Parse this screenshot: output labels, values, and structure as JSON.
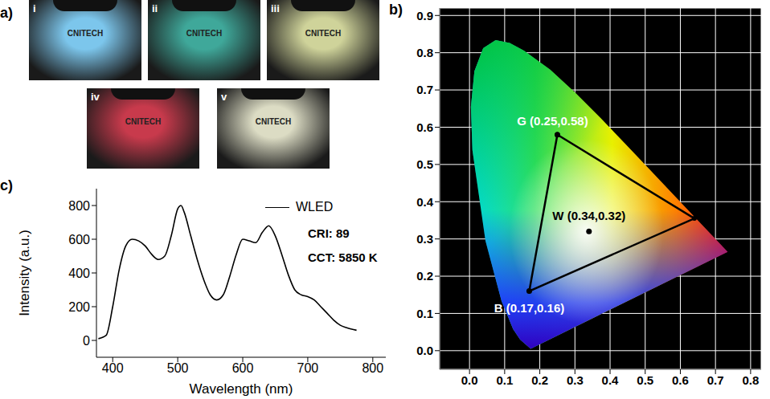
{
  "photos": {
    "label": "a)",
    "items": [
      {
        "label": "i",
        "text": "CNITECH",
        "color": "#7cc6ec"
      },
      {
        "label": "ii",
        "text": "CNITECH",
        "color": "#3fa89a"
      },
      {
        "label": "iii",
        "text": "CNITECH",
        "color": "#cfd39a"
      },
      {
        "label": "iv",
        "text": "CNITECH",
        "color": "#c83a4c"
      },
      {
        "label": "v",
        "text": "CNITECH",
        "color": "#dcdcc4"
      }
    ]
  },
  "chart_data": [
    {
      "label": "c)",
      "type": "line",
      "x": [
        378,
        390,
        400,
        410,
        420,
        430,
        440,
        450,
        460,
        470,
        480,
        490,
        500,
        505,
        510,
        520,
        530,
        540,
        550,
        560,
        570,
        580,
        590,
        600,
        610,
        620,
        630,
        640,
        650,
        660,
        670,
        680,
        690,
        700,
        710,
        720,
        730,
        740,
        750,
        760,
        775
      ],
      "series": [
        {
          "name": "WLED",
          "color": "#000000",
          "values": [
            10,
            30,
            200,
            420,
            560,
            600,
            590,
            560,
            510,
            480,
            500,
            620,
            780,
            800,
            760,
            620,
            480,
            360,
            270,
            240,
            270,
            380,
            510,
            600,
            590,
            580,
            640,
            680,
            620,
            510,
            390,
            300,
            270,
            260,
            240,
            200,
            160,
            120,
            90,
            75,
            60
          ]
        }
      ],
      "xlim": [
        375,
        820
      ],
      "ylim": [
        -100,
        900
      ],
      "xticks": [
        400,
        500,
        600,
        700,
        800
      ],
      "yticks": [
        0,
        200,
        400,
        600,
        800
      ],
      "x_label": "Wavelength (nm)",
      "y_label": "Intensity (a.u.)",
      "annotations": [
        "CRI: 89",
        "CCT: 5850 K"
      ],
      "legend": "upper right"
    },
    {
      "label": "b)",
      "type": "scatter",
      "xlim": [
        -0.085,
        0.83
      ],
      "ylim": [
        -0.05,
        0.92
      ],
      "xticks": [
        {
          "value": 0,
          "label": "0.0"
        },
        0.1,
        0.2,
        0.3,
        0.4,
        0.5,
        0.6,
        0.7,
        0.8
      ],
      "yticks": [
        {
          "value": 0,
          "label": "0.0"
        },
        0.1,
        0.2,
        0.3,
        0.4,
        0.5,
        0.6,
        0.7,
        0.8,
        0.9
      ],
      "grid": true,
      "locus": {
        "x": [
          0.1741,
          0.144,
          0.1241,
          0.0913,
          0.0454,
          0.0082,
          0.0039,
          0.0139,
          0.0389,
          0.0743,
          0.1142,
          0.1547,
          0.2296,
          0.3016,
          0.3731,
          0.4441,
          0.5125,
          0.5752,
          0.627,
          0.6915,
          0.7347
        ],
        "y": [
          0.005,
          0.0297,
          0.0578,
          0.1327,
          0.295,
          0.5384,
          0.6548,
          0.7502,
          0.812,
          0.8338,
          0.8262,
          0.8059,
          0.7543,
          0.6923,
          0.6245,
          0.5547,
          0.4866,
          0.4242,
          0.3725,
          0.3083,
          0.2653
        ]
      },
      "triangle": {
        "x": [
          0.25,
          0.64,
          0.17
        ],
        "y": [
          0.58,
          0.355,
          0.16
        ],
        "color": "#000000"
      },
      "points": [
        {
          "label": "G (0.25,0.58)",
          "x": 0.25,
          "y": 0.58,
          "color": "#ffffff"
        },
        {
          "label": "W (0.34,0.32)",
          "x": 0.34,
          "y": 0.32,
          "color": "#000000"
        },
        {
          "label": "B (0.17,0.16)",
          "x": 0.17,
          "y": 0.16,
          "color": "#ffffff"
        }
      ]
    }
  ]
}
